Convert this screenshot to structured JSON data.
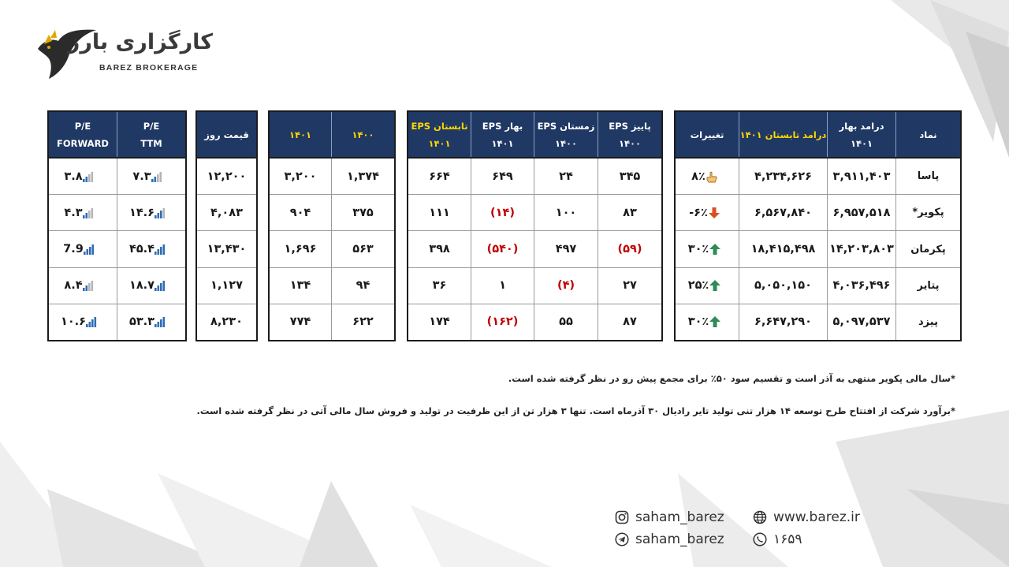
{
  "brand": {
    "name_fa": "کارگزاری بارز",
    "name_en": "BAREZ BROKERAGE"
  },
  "colors": {
    "header_bg": "#1f3864",
    "header_text": "#ffffff",
    "highlight_text": "#ffd700",
    "negative": "#c00000",
    "up_arrow": "#2e8b57",
    "down_arrow": "#d94f1e"
  },
  "table1": {
    "headers": [
      {
        "l1": "نماد",
        "l2": "",
        "gold": false
      },
      {
        "l1": "درامد بهار",
        "l2": "۱۴۰۱",
        "gold": false
      },
      {
        "l1": "درامد تابستان ۱۴۰۱",
        "l2": "",
        "gold": true
      },
      {
        "l1": "تغییرات",
        "l2": "",
        "gold": false
      }
    ],
    "rows": [
      {
        "symbol": "پاسا",
        "spring": "۳,۹۱۱,۴۰۳",
        "summer": "۴,۲۳۴,۶۲۶",
        "change": "۸٪",
        "icon": "hand-pointer-icon"
      },
      {
        "symbol": "*پکویر",
        "spring": "۶,۹۵۷,۵۱۸",
        "summer": "۶,۵۶۷,۸۴۰",
        "change": "-۶٪",
        "icon": "arrow-down-icon"
      },
      {
        "symbol": "پکرمان",
        "spring": "۱۴,۲۰۳,۸۰۳",
        "summer": "۱۸,۴۱۵,۴۹۸",
        "change": "۳۰٪",
        "icon": "arrow-up-icon"
      },
      {
        "symbol": "پتایر",
        "spring": "۴,۰۳۶,۴۹۶",
        "summer": "۵,۰۵۰,۱۵۰",
        "change": "۲۵٪",
        "icon": "arrow-up-icon"
      },
      {
        "symbol": "پیزد",
        "spring": "۵,۰۹۷,۵۳۷",
        "summer": "۶,۶۴۷,۲۹۰",
        "change": "۳۰٪",
        "icon": "arrow-up-icon"
      }
    ]
  },
  "table2": {
    "headers": [
      {
        "l1": "EPS پاییز",
        "l2": "۱۴۰۰",
        "gold": false
      },
      {
        "l1": "EPS زمستان",
        "l2": "۱۴۰۰",
        "gold": false
      },
      {
        "l1": "EPS بهار",
        "l2": "۱۴۰۱",
        "gold": false
      },
      {
        "l1": "EPS تابستان",
        "l2": "۱۴۰۱",
        "gold": true
      }
    ],
    "rows": [
      {
        "autumn": "۳۴۵",
        "winter": "۲۴",
        "spring": "۶۴۹",
        "summer": "۶۶۴",
        "neg": [
          false,
          false,
          false,
          false
        ]
      },
      {
        "autumn": "۸۳",
        "winter": "۱۰۰",
        "spring": "(۱۴)",
        "summer": "۱۱۱",
        "neg": [
          false,
          false,
          true,
          false
        ]
      },
      {
        "autumn": "(۵۹)",
        "winter": "۴۹۷",
        "spring": "(۵۴۰)",
        "summer": "۳۹۸",
        "neg": [
          true,
          false,
          true,
          false
        ]
      },
      {
        "autumn": "۲۷",
        "winter": "(۴)",
        "spring": "۱",
        "summer": "۳۶",
        "neg": [
          false,
          true,
          false,
          false
        ]
      },
      {
        "autumn": "۸۷",
        "winter": "۵۵",
        "spring": "(۱۶۲)",
        "summer": "۱۷۴",
        "neg": [
          false,
          false,
          true,
          false
        ]
      }
    ]
  },
  "table3": {
    "headers": [
      {
        "l1": "۱۴۰۰",
        "gold": true
      },
      {
        "l1": "۱۴۰۱",
        "gold": true
      }
    ],
    "rows": [
      {
        "y1400": "۱,۳۷۴",
        "y1401": "۳,۲۰۰"
      },
      {
        "y1400": "۳۷۵",
        "y1401": "۹۰۴"
      },
      {
        "y1400": "۵۶۳",
        "y1401": "۱,۶۹۶"
      },
      {
        "y1400": "۹۴",
        "y1401": "۱۳۴"
      },
      {
        "y1400": "۶۲۲",
        "y1401": "۷۷۴"
      }
    ]
  },
  "table4": {
    "header": "قیمت روز",
    "rows": [
      "۱۲,۲۰۰",
      "۴,۰۸۳",
      "۱۳,۴۳۰",
      "۱,۱۲۷",
      "۸,۲۳۰"
    ]
  },
  "table5": {
    "headers": [
      {
        "l1": "P/E",
        "l2": "TTM"
      },
      {
        "l1": "P/E",
        "l2": "FORWARD"
      }
    ],
    "rows": [
      {
        "ttm": "۷.۳",
        "fwd": "۳.۸",
        "ttm_level": 2,
        "fwd_level": 2
      },
      {
        "ttm": "۱۴.۶",
        "fwd": "۴.۳",
        "ttm_level": 3,
        "fwd_level": 2
      },
      {
        "ttm": "۴۵.۴",
        "fwd": "7.9",
        "ttm_level": 4,
        "fwd_level": 4
      },
      {
        "ttm": "۱۸.۷",
        "fwd": "۸.۴",
        "ttm_level": 4,
        "fwd_level": 2
      },
      {
        "ttm": "۵۳.۳",
        "fwd": "۱۰.۶",
        "ttm_level": 4,
        "fwd_level": 4
      }
    ]
  },
  "notes": [
    "*سال مالی پکویر منتهی به آذر است و تقسیم سود ۵۰٪ برای مجمع پیش رو در نظر گرفته شده است.",
    "*برآورد شرکت از افتتاح طرح توسعه ۱۴ هزار تنی تولید تایر رادیال ۳۰ آذرماه است. تنها ۳ هزار تن از این ظرفیت در تولید و فروش سال مالی آتی در نظر گرفته شده است."
  ],
  "contacts": {
    "instagram": "saham_barez",
    "website": "www.barez.ir",
    "telegram": "saham_barez",
    "phone": "۱۶۵۹"
  }
}
